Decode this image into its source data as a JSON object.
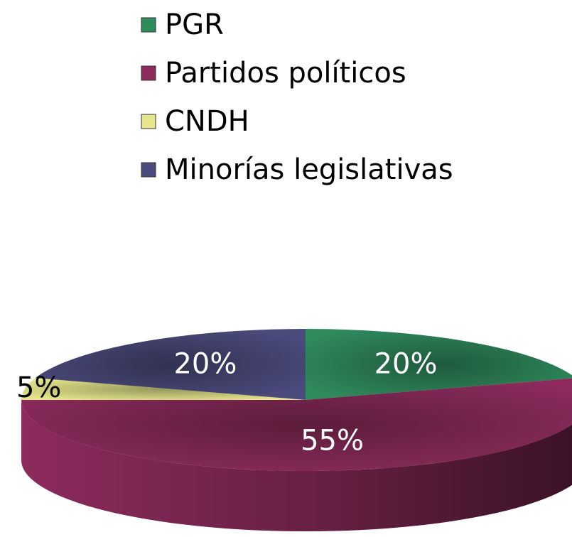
{
  "chart_data": {
    "type": "pie",
    "categories": [
      "PGR",
      "Partidos políticos",
      "CNDH",
      "Minorías legislativas"
    ],
    "values": [
      20,
      55,
      5,
      20
    ],
    "value_labels": [
      "20%",
      "55%",
      "5%",
      "20%"
    ],
    "colors": [
      "#2f8a5c",
      "#8c2b5c",
      "#e6e68c",
      "#4b4b7d"
    ],
    "legend": "top"
  }
}
